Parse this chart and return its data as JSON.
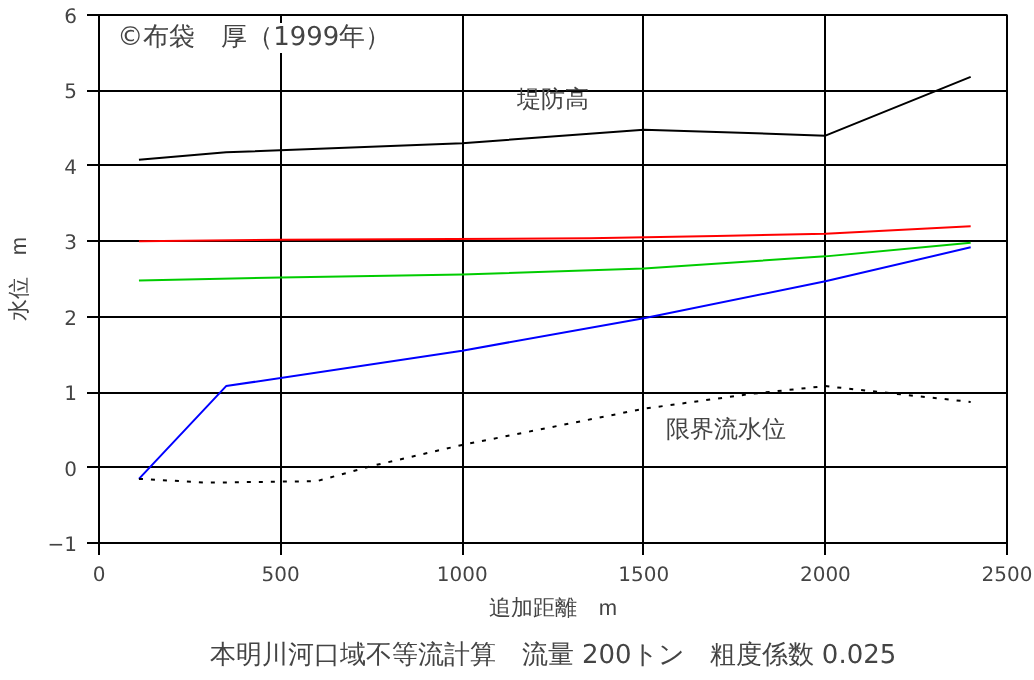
{
  "chart_data": {
    "type": "line",
    "title": "本明川河口域不等流計算　流量 200トン　粗度係数 0.025",
    "xlabel": "追加距離　m",
    "ylabel": "水位　m",
    "xlim": [
      0,
      2500
    ],
    "ylim": [
      -1,
      6
    ],
    "xticks": [
      0,
      500,
      1000,
      1500,
      2000,
      2500
    ],
    "yticks": [
      -1,
      0,
      1,
      2,
      3,
      4,
      5,
      6
    ],
    "grid": true,
    "marker": "none",
    "line_style": "solid",
    "annotations": [
      "©布袋　厚（1999年）",
      "堤防高",
      "限界流水位"
    ],
    "series": [
      {
        "color": "#000000",
        "x": [
          110,
          350,
          1000,
          1500,
          1700,
          2000,
          2400
        ],
        "values": [
          4.08,
          4.18,
          4.3,
          4.48,
          4.45,
          4.4,
          5.18
        ]
      },
      {
        "color": "#ff0000",
        "x": [
          110,
          500,
          1350,
          1700,
          2000,
          2400
        ],
        "values": [
          3.0,
          3.02,
          3.04,
          3.07,
          3.1,
          3.2
        ]
      },
      {
        "color": "#00cc00",
        "x": [
          110,
          500,
          1000,
          1500,
          2000,
          2400
        ],
        "values": [
          2.48,
          2.52,
          2.56,
          2.64,
          2.8,
          2.98
        ]
      },
      {
        "color": "#0000ff",
        "x": [
          110,
          350,
          1000,
          1500,
          2000,
          2400
        ],
        "values": [
          -0.15,
          1.08,
          1.55,
          1.98,
          2.47,
          2.92
        ]
      },
      {
        "color": "#000000",
        "line_style": "dotted",
        "x": [
          110,
          300,
          600,
          750,
          1000,
          1500,
          1800,
          2000,
          2400
        ],
        "values": [
          -0.15,
          -0.2,
          -0.18,
          0.02,
          0.3,
          0.78,
          0.98,
          1.08,
          0.87
        ]
      }
    ]
  }
}
